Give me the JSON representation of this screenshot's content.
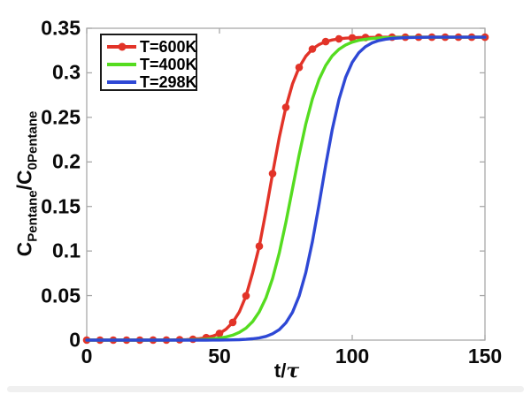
{
  "figure": {
    "background": "#ffffff",
    "axis_color": "#a9a9a9",
    "text_color": "#0a0a0a"
  },
  "chart_data": {
    "type": "line",
    "title": "",
    "xlabel": "t/τ",
    "xlabel_parts": {
      "pre": "t/",
      "tau": "τ"
    },
    "ylabel": "C_Pentane / C_0Pentane",
    "ylabel_parts": {
      "c1": "C",
      "s1": "Pentane",
      "c2": "/C",
      "s2": "0Pentane"
    },
    "xlim": [
      0,
      150
    ],
    "ylim": [
      0,
      0.35
    ],
    "grid": false,
    "legend_position": "top-left",
    "plateau_value": 0.34,
    "x_ticks": [
      {
        "value": 0,
        "label": "0"
      },
      {
        "value": 50,
        "label": "50"
      },
      {
        "value": 100,
        "label": "100"
      },
      {
        "value": 150,
        "label": "150"
      }
    ],
    "y_ticks": [
      {
        "value": 0,
        "label": "0"
      },
      {
        "value": 0.05,
        "label": "0.05"
      },
      {
        "value": 0.1,
        "label": "0.1"
      },
      {
        "value": 0.15,
        "label": "0.15"
      },
      {
        "value": 0.2,
        "label": "0.2"
      },
      {
        "value": 0.25,
        "label": "0.25"
      },
      {
        "value": 0.3,
        "label": "0.3"
      },
      {
        "value": 0.35,
        "label": "0.35"
      }
    ],
    "x": [
      0,
      2.5,
      5,
      7.5,
      10,
      12.5,
      15,
      17.5,
      20,
      22.5,
      25,
      27.5,
      30,
      32.5,
      35,
      37.5,
      40,
      42.5,
      45,
      47.5,
      50,
      52.5,
      55,
      57.5,
      60,
      62.5,
      65,
      67.5,
      70,
      72.5,
      75,
      77.5,
      80,
      82.5,
      85,
      87.5,
      90,
      92.5,
      95,
      97.5,
      100,
      102.5,
      105,
      107.5,
      110,
      112.5,
      115,
      117.5,
      120,
      122.5,
      125,
      127.5,
      130,
      132.5,
      135,
      137.5,
      140,
      142.5,
      145,
      147.5,
      150
    ],
    "series": [
      {
        "name": "T=600K",
        "color": "#e23328",
        "marker": "circle",
        "marker_step_x": 5,
        "values": [
          0,
          0,
          0,
          0,
          0,
          0,
          0,
          0,
          0,
          0,
          0.0001,
          0.0001,
          0.0001,
          0.0002,
          0.0004,
          0.0006,
          0.001,
          0.0017,
          0.0028,
          0.0046,
          0.0075,
          0.0123,
          0.0199,
          0.0317,
          0.0497,
          0.0758,
          0.1054,
          0.1447,
          0.1869,
          0.2272,
          0.2613,
          0.2875,
          0.3061,
          0.3186,
          0.3267,
          0.3318,
          0.335,
          0.3369,
          0.3381,
          0.3389,
          0.3393,
          0.3396,
          0.3397,
          0.3398,
          0.3399,
          0.34,
          0.34,
          0.34,
          0.34,
          0.34,
          0.34,
          0.34,
          0.34,
          0.34,
          0.34,
          0.34,
          0.34,
          0.34,
          0.34,
          0.34,
          0.34
        ]
      },
      {
        "name": "T=400K",
        "color": "#55dc20",
        "marker": "none",
        "values": [
          0,
          0,
          0,
          0,
          0,
          0,
          0,
          0,
          0,
          0,
          0,
          0,
          0.0001,
          0.0001,
          0.0001,
          0.0002,
          0.0004,
          0.0006,
          0.0009,
          0.0015,
          0.0023,
          0.0036,
          0.0056,
          0.0087,
          0.0135,
          0.0208,
          0.0318,
          0.0474,
          0.0692,
          0.0976,
          0.132,
          0.17,
          0.2079,
          0.2424,
          0.2708,
          0.2926,
          0.3082,
          0.3192,
          0.3264,
          0.3313,
          0.3344,
          0.3365,
          0.3377,
          0.3385,
          0.3391,
          0.3394,
          0.3396,
          0.3398,
          0.3398,
          0.3399,
          0.34,
          0.34,
          0.34,
          0.34,
          0.34,
          0.34,
          0.34,
          0.34,
          0.34,
          0.34,
          0.34
        ]
      },
      {
        "name": "T=298K",
        "color": "#2e48d5",
        "marker": "none",
        "values": [
          0,
          0,
          0,
          0,
          0,
          0,
          0,
          0,
          0,
          0,
          0,
          0,
          0,
          0,
          0,
          0,
          0,
          0,
          0,
          0.0001,
          0.0001,
          0.0002,
          0.0003,
          0.0005,
          0.0009,
          0.0015,
          0.0025,
          0.0042,
          0.0071,
          0.0117,
          0.0193,
          0.0312,
          0.0495,
          0.0757,
          0.1106,
          0.1522,
          0.1962,
          0.2368,
          0.27,
          0.2949,
          0.3117,
          0.3226,
          0.3294,
          0.3336,
          0.3362,
          0.3377,
          0.3386,
          0.3391,
          0.3395,
          0.3397,
          0.3398,
          0.3399,
          0.34,
          0.34,
          0.34,
          0.34,
          0.34,
          0.34,
          0.34,
          0.34,
          0.34
        ]
      }
    ]
  }
}
